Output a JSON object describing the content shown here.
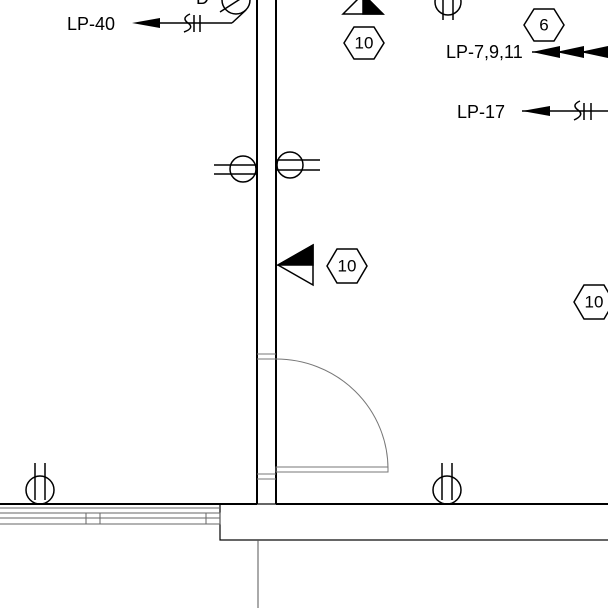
{
  "circuit_labels": {
    "lp40": "LP-40",
    "lp7911": "LP-7,9,11",
    "lp17": "LP-17"
  },
  "device_tags": {
    "top_center": "10",
    "top_right": "6",
    "wall_device": "10",
    "right_edge": "10"
  },
  "clipped_label_fragment": "D",
  "line_color": "#000000",
  "door_swing_color": "#777777"
}
